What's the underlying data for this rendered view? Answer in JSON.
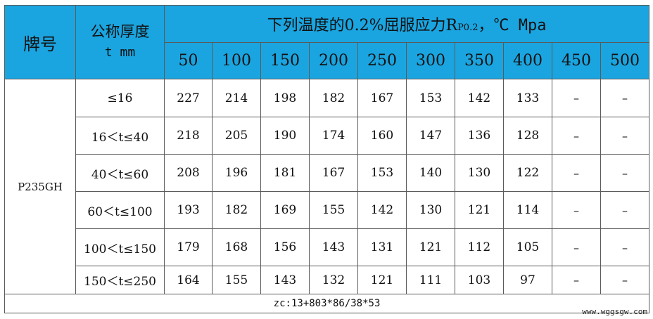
{
  "header": {
    "grade_label": "牌号",
    "thickness_label": "公称厚度",
    "thickness_unit": "t mm",
    "title_main": "下列温度的0.2%屈服应力R",
    "title_sub": "P0.2",
    "title_tail": "，℃ Mpa",
    "temperatures": [
      "50",
      "100",
      "150",
      "200",
      "250",
      "300",
      "350",
      "400",
      "450",
      "500"
    ]
  },
  "grade": "P235GH",
  "rows": [
    {
      "range": "≤16",
      "values": [
        "227",
        "214",
        "198",
        "182",
        "167",
        "153",
        "142",
        "133",
        "–",
        "–"
      ]
    },
    {
      "range": "16＜t≤40",
      "values": [
        "218",
        "205",
        "190",
        "174",
        "160",
        "147",
        "136",
        "128",
        "–",
        "–"
      ]
    },
    {
      "range": "40＜t≤60",
      "values": [
        "208",
        "196",
        "181",
        "167",
        "153",
        "140",
        "130",
        "122",
        "–",
        "–"
      ]
    },
    {
      "range": "60＜t≤100",
      "values": [
        "193",
        "182",
        "169",
        "155",
        "142",
        "130",
        "121",
        "114",
        "–",
        "–"
      ]
    },
    {
      "range": "100＜t≤150",
      "values": [
        "179",
        "168",
        "156",
        "143",
        "131",
        "121",
        "112",
        "105",
        "–",
        "–"
      ]
    },
    {
      "range": "150＜t≤250",
      "values": [
        "164",
        "155",
        "143",
        "132",
        "121",
        "111",
        "103",
        "97",
        "–",
        "–"
      ]
    }
  ],
  "footer": "zc:13+803*86/38*53",
  "watermark": "www.wggsgw.com",
  "colors": {
    "header_bg": "#1aa5e0",
    "border": "#5a5a5a"
  }
}
